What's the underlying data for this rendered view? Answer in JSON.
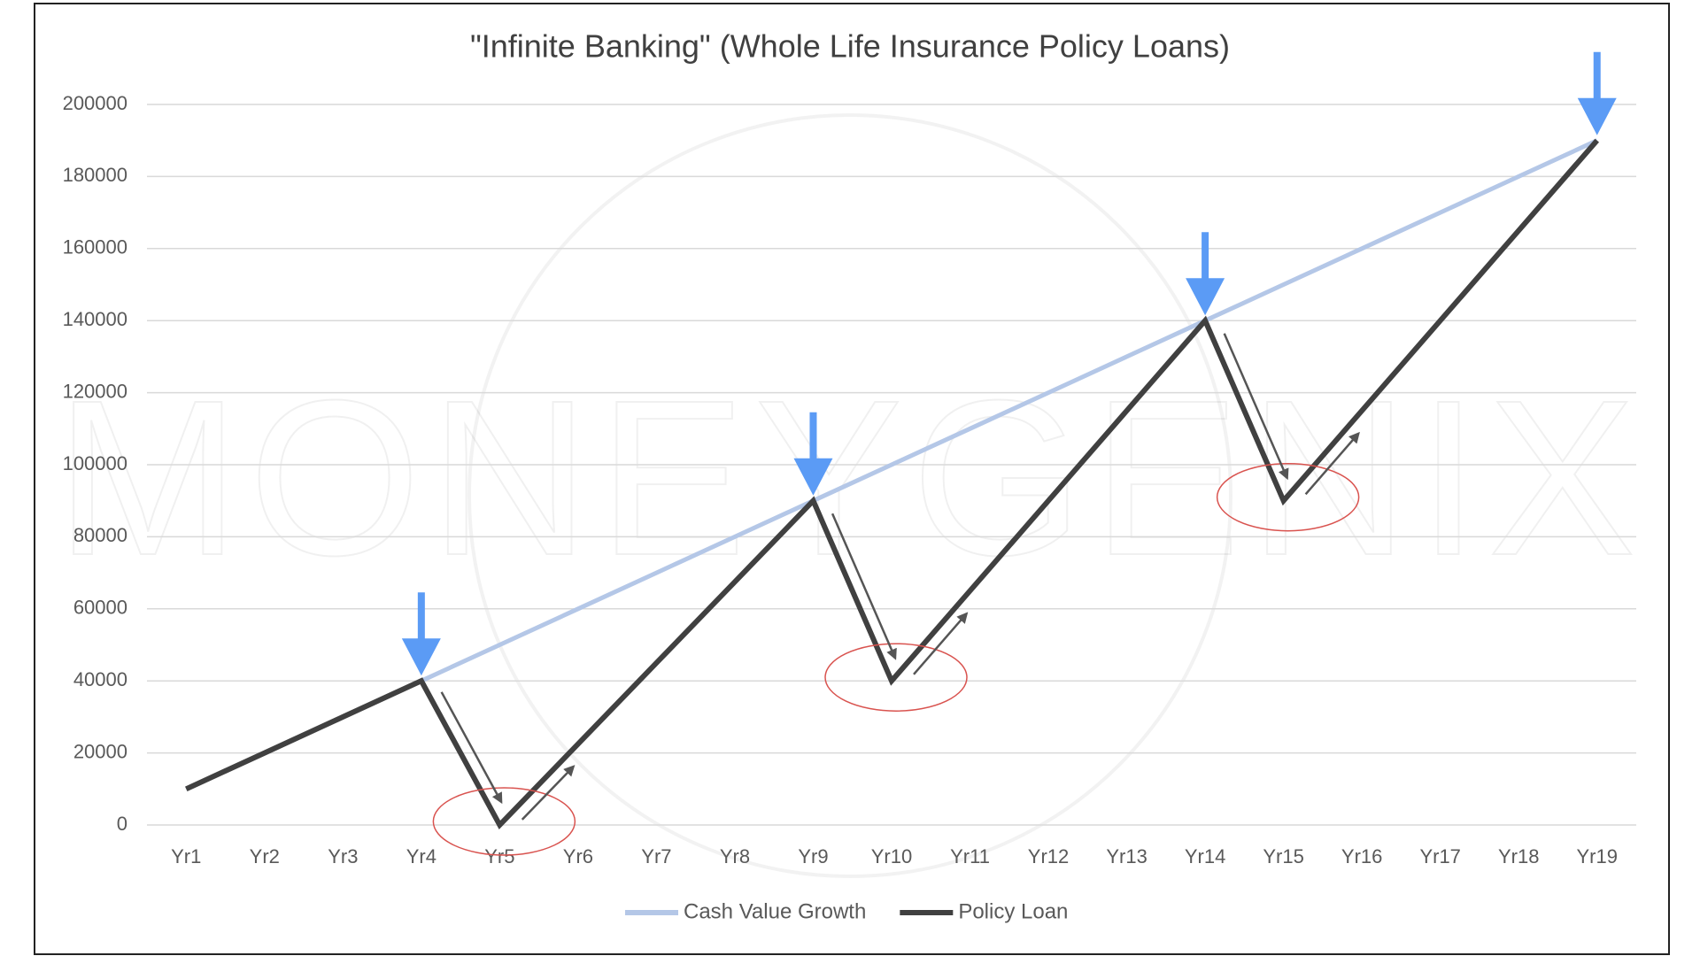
{
  "chart_data": {
    "type": "line",
    "title": "\"Infinite Banking\" (Whole Life Insurance Policy Loans)",
    "watermark": "MONEYGENIX",
    "categories": [
      "Yr1",
      "Yr2",
      "Yr3",
      "Yr4",
      "Yr5",
      "Yr6",
      "Yr7",
      "Yr8",
      "Yr9",
      "Yr10",
      "Yr11",
      "Yr12",
      "Yr13",
      "Yr14",
      "Yr15",
      "Yr16",
      "Yr17",
      "Yr18",
      "Yr19"
    ],
    "series": [
      {
        "name": "Cash Value Growth",
        "color": "#b4c7e7",
        "values": [
          10000,
          20000,
          30000,
          40000,
          50000,
          60000,
          70000,
          80000,
          90000,
          100000,
          110000,
          120000,
          130000,
          140000,
          150000,
          160000,
          170000,
          180000,
          190000
        ]
      },
      {
        "name": "Policy Loan",
        "color": "#404040",
        "values": [
          10000,
          20000,
          30000,
          40000,
          0,
          22500,
          45000,
          67500,
          90000,
          40000,
          65000,
          90000,
          115000,
          140000,
          90000,
          115000,
          140000,
          165000,
          190000
        ]
      }
    ],
    "ylim": [
      0,
      200000
    ],
    "yticks": [
      0,
      20000,
      40000,
      60000,
      80000,
      100000,
      120000,
      140000,
      160000,
      180000,
      200000
    ],
    "grid": true,
    "legend": "bottom"
  }
}
